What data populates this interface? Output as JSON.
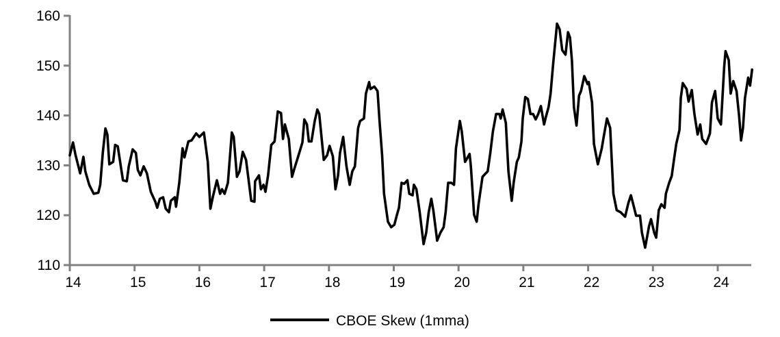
{
  "chart_data": {
    "type": "line",
    "title": "",
    "xlabel": "",
    "ylabel": "",
    "xlim": [
      14,
      24.52
    ],
    "ylim": [
      110,
      160
    ],
    "x_ticks": [
      "14",
      "15",
      "16",
      "17",
      "18",
      "19",
      "20",
      "21",
      "22",
      "23",
      "24"
    ],
    "y_ticks": [
      "110",
      "120",
      "130",
      "140",
      "150",
      "160"
    ],
    "grid": false,
    "legend_position": "bottom",
    "axis_color": "#808080",
    "x": [
      14.0,
      14.05,
      14.09,
      14.16,
      14.21,
      14.24,
      14.3,
      14.37,
      14.44,
      14.47,
      14.51,
      14.55,
      14.58,
      14.61,
      14.67,
      14.7,
      14.74,
      14.82,
      14.88,
      14.91,
      14.97,
      15.02,
      15.05,
      15.09,
      15.14,
      15.19,
      15.25,
      15.32,
      15.35,
      15.39,
      15.44,
      15.48,
      15.53,
      15.56,
      15.62,
      15.64,
      15.69,
      15.74,
      15.77,
      15.83,
      15.88,
      15.95,
      16.0,
      16.07,
      16.13,
      16.17,
      16.21,
      16.27,
      16.32,
      16.35,
      16.39,
      16.44,
      16.5,
      16.53,
      16.58,
      16.62,
      16.67,
      16.72,
      16.8,
      16.85,
      16.86,
      16.92,
      16.95,
      16.99,
      17.02,
      17.06,
      17.11,
      17.16,
      17.21,
      17.26,
      17.29,
      17.32,
      17.38,
      17.43,
      17.46,
      17.53,
      17.59,
      17.62,
      17.66,
      17.69,
      17.73,
      17.78,
      17.82,
      17.85,
      17.92,
      17.97,
      18.01,
      18.06,
      18.1,
      18.14,
      18.17,
      18.22,
      18.27,
      18.32,
      18.36,
      18.4,
      18.45,
      18.48,
      18.54,
      18.57,
      18.62,
      18.64,
      18.7,
      18.75,
      18.78,
      18.82,
      18.85,
      18.91,
      18.96,
      19.01,
      19.05,
      19.08,
      19.12,
      19.16,
      19.21,
      19.24,
      19.29,
      19.31,
      19.35,
      19.4,
      19.46,
      19.5,
      19.54,
      19.58,
      19.61,
      19.65,
      19.67,
      19.72,
      19.77,
      19.8,
      19.84,
      19.89,
      19.93,
      19.96,
      19.99,
      20.02,
      20.05,
      20.1,
      20.14,
      20.17,
      20.19,
      20.24,
      20.28,
      20.31,
      20.37,
      20.42,
      20.45,
      20.49,
      20.53,
      20.58,
      20.63,
      20.65,
      20.68,
      20.73,
      20.77,
      20.82,
      20.85,
      20.9,
      20.93,
      20.97,
      20.99,
      21.03,
      21.07,
      21.11,
      21.15,
      21.19,
      21.23,
      21.27,
      21.32,
      21.35,
      21.39,
      21.42,
      21.46,
      21.52,
      21.56,
      21.6,
      21.65,
      21.69,
      21.72,
      21.75,
      21.78,
      21.82,
      21.86,
      21.89,
      21.94,
      21.99,
      22.01,
      22.06,
      22.09,
      22.15,
      22.21,
      22.24,
      22.29,
      22.34,
      22.39,
      22.44,
      22.5,
      22.57,
      22.62,
      22.66,
      22.71,
      22.74,
      22.8,
      22.83,
      22.88,
      22.94,
      22.97,
      23.02,
      23.05,
      23.09,
      23.13,
      23.18,
      23.2,
      23.25,
      23.29,
      23.32,
      23.36,
      23.41,
      23.43,
      23.46,
      23.52,
      23.55,
      23.6,
      23.64,
      23.69,
      23.73,
      23.76,
      23.82,
      23.88,
      23.91,
      23.96,
      24.0,
      24.05,
      24.1,
      24.12,
      24.17,
      24.2,
      24.24,
      24.29,
      24.33,
      24.36,
      24.39,
      24.42,
      24.47,
      24.5,
      24.53
    ],
    "series": [
      {
        "name": "CBOE Skew (1mma)",
        "color": "#000000",
        "values": [
          132.0,
          134.6,
          132.0,
          128.4,
          131.7,
          128.8,
          126.1,
          124.3,
          124.5,
          126.1,
          132.6,
          137.4,
          136.2,
          130.2,
          130.7,
          134.1,
          133.8,
          127.0,
          126.8,
          129.8,
          133.2,
          132.5,
          129.1,
          128.0,
          129.8,
          128.4,
          124.7,
          122.7,
          121.5,
          123.3,
          123.6,
          121.3,
          120.6,
          122.9,
          123.6,
          121.7,
          126.5,
          133.4,
          131.6,
          134.8,
          135.0,
          136.4,
          135.7,
          136.6,
          130.7,
          121.3,
          123.8,
          127.0,
          124.3,
          125.2,
          124.3,
          126.5,
          136.6,
          135.7,
          127.7,
          128.8,
          132.7,
          131.1,
          122.9,
          122.7,
          126.8,
          128.0,
          125.2,
          126.1,
          124.7,
          128.0,
          134.1,
          134.8,
          140.8,
          140.5,
          135.3,
          138.2,
          135.3,
          127.7,
          129.1,
          132.0,
          134.6,
          139.2,
          138.2,
          134.8,
          134.8,
          138.9,
          141.2,
          140.3,
          131.1,
          132.0,
          133.9,
          131.8,
          125.2,
          128.0,
          132.5,
          135.7,
          129.8,
          126.1,
          128.8,
          129.8,
          137.5,
          138.9,
          139.4,
          144.4,
          146.7,
          145.3,
          145.8,
          144.9,
          138.9,
          132.0,
          124.3,
          118.7,
          117.6,
          118.1,
          120.1,
          121.5,
          126.5,
          126.3,
          127.0,
          124.3,
          124.0,
          126.1,
          125.2,
          120.6,
          114.2,
          116.5,
          120.6,
          123.3,
          121.0,
          116.9,
          114.9,
          116.5,
          117.6,
          120.6,
          126.5,
          126.5,
          126.1,
          133.4,
          136.2,
          138.9,
          136.8,
          130.7,
          131.6,
          132.3,
          129.8,
          120.1,
          118.7,
          122.4,
          127.7,
          128.4,
          128.8,
          132.5,
          136.8,
          140.3,
          140.3,
          139.4,
          141.2,
          138.5,
          128.8,
          122.9,
          126.5,
          130.7,
          131.6,
          134.8,
          139.4,
          143.7,
          143.3,
          140.3,
          140.3,
          139.2,
          140.3,
          141.9,
          138.2,
          139.8,
          141.7,
          144.4,
          150.4,
          158.4,
          157.3,
          153.1,
          152.2,
          156.7,
          155.6,
          151.0,
          141.7,
          138.0,
          144.0,
          144.9,
          147.9,
          146.3,
          146.7,
          142.6,
          134.3,
          130.2,
          133.4,
          135.7,
          139.4,
          137.5,
          124.3,
          121.0,
          120.6,
          119.7,
          122.4,
          124.0,
          121.5,
          119.9,
          119.9,
          116.5,
          113.5,
          117.8,
          119.2,
          116.5,
          115.5,
          121.0,
          122.2,
          121.5,
          124.3,
          126.5,
          127.9,
          130.7,
          134.3,
          137.1,
          143.5,
          146.5,
          145.3,
          142.8,
          145.1,
          140.3,
          136.2,
          138.2,
          135.3,
          134.3,
          136.4,
          142.6,
          144.9,
          139.4,
          138.2,
          149.9,
          152.9,
          151.1,
          144.4,
          146.9,
          144.9,
          139.8,
          135.0,
          137.5,
          143.5,
          147.6,
          146.0,
          149.2
        ]
      }
    ]
  }
}
